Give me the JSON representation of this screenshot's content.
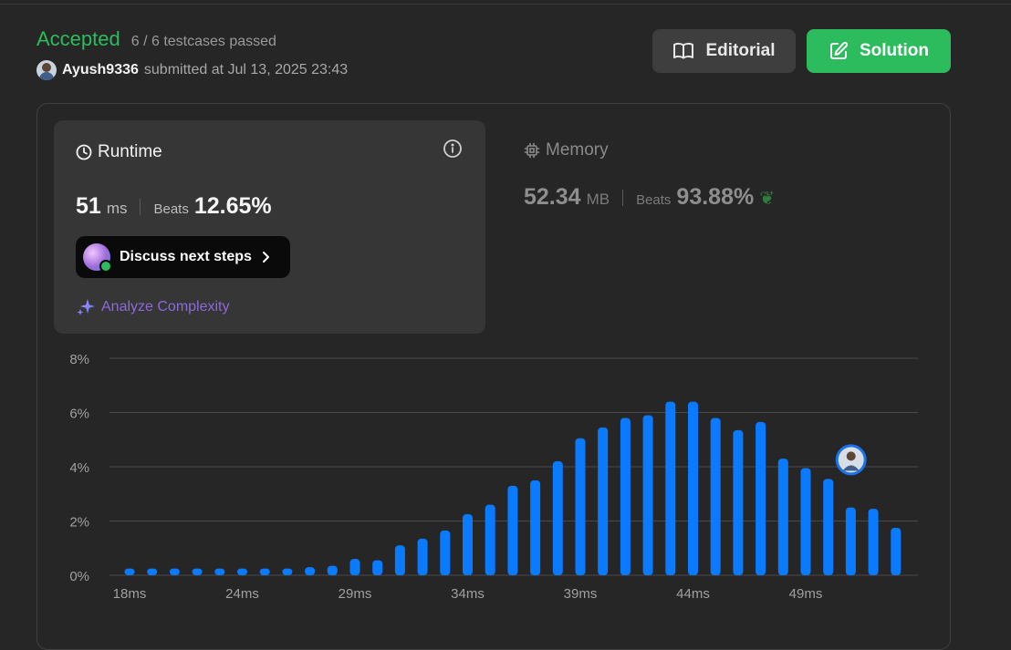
{
  "status": {
    "result": "Accepted",
    "testcases": "6 / 6 testcases passed",
    "username": "Ayush9336",
    "submitted": "submitted at Jul 13, 2025 23:43"
  },
  "buttons": {
    "editorial": "Editorial",
    "solution": "Solution"
  },
  "runtime": {
    "title": "Runtime",
    "value": "51",
    "unit": "ms",
    "beats_label": "Beats",
    "beats_value": "12.65%",
    "discuss_label": "Discuss next steps",
    "analyze_label": "Analyze Complexity"
  },
  "memory": {
    "title": "Memory",
    "value": "52.34",
    "unit": "MB",
    "beats_label": "Beats",
    "beats_value": "93.88%"
  },
  "colors": {
    "accepted": "#2cbb5d",
    "bar": "#0a7bff",
    "analyze": "#8b6ad8"
  },
  "chart_data": {
    "type": "bar",
    "title": "",
    "xlabel": "",
    "ylabel": "",
    "ylim": [
      0,
      8
    ],
    "y_ticks": [
      "0%",
      "2%",
      "4%",
      "6%",
      "8%"
    ],
    "x_ticks": [
      "18ms",
      "24ms",
      "29ms",
      "34ms",
      "39ms",
      "44ms",
      "49ms"
    ],
    "grid": true,
    "values": [
      0.25,
      0.25,
      0.25,
      0.25,
      0.25,
      0.25,
      0.25,
      0.25,
      0.3,
      0.35,
      0.6,
      0.55,
      1.1,
      1.35,
      1.65,
      2.25,
      2.6,
      3.3,
      3.5,
      4.2,
      5.05,
      5.45,
      5.8,
      5.9,
      6.4,
      6.4,
      5.8,
      5.35,
      5.65,
      4.3,
      3.95,
      3.55,
      2.5,
      2.45,
      1.75
    ],
    "highlight_index": 31
  }
}
